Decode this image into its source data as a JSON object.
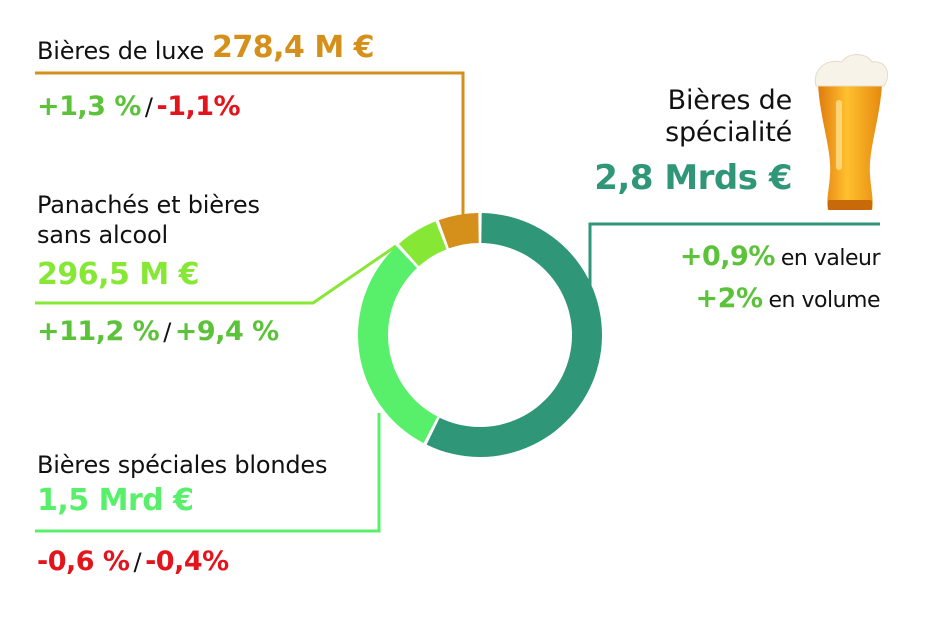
{
  "colors": {
    "luxe": "#d4901b",
    "panaches": "#86e835",
    "blondes": "#58f06a",
    "specialite": "#2f9677",
    "positive": "#5cc23a",
    "negative": "#e3141c"
  },
  "icon": "beer-glass-icon",
  "labels": {
    "luxe": {
      "name": "Bières de luxe",
      "value": "278,4 M €",
      "chg1": "+1,3 %",
      "sep": "/",
      "chg2": "-1,1%"
    },
    "panaches": {
      "name1": "Panachés et bières",
      "name2": "sans alcool",
      "value": "296,5 M €",
      "chg1": "+11,2 %",
      "sep": "/",
      "chg2": "+9,4 %"
    },
    "blondes": {
      "name": "Bières spéciales blondes",
      "value": "1,5 Mrd €",
      "chg1": "-0,6 %",
      "sep": "/",
      "chg2": "-0,4%"
    },
    "specialite": {
      "name1": "Bières de",
      "name2": "spécialité",
      "value": "2,8 Mrds €",
      "chg1": "+0,9%",
      "unit1": "en valeur",
      "chg2": "+2%",
      "unit2": "en volume"
    }
  },
  "chart_data": {
    "type": "pie",
    "donut": true,
    "categories": [
      "Bières de spécialité",
      "Bières spéciales blondes",
      "Panachés et bières sans alcool",
      "Bières de luxe"
    ],
    "values": [
      2.8,
      1.5,
      0.2965,
      0.2784
    ],
    "unit": "M€ / Mrd€"
  }
}
